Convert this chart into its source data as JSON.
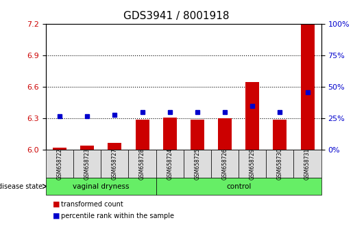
{
  "title": "GDS3941 / 8001918",
  "samples": [
    "GSM658722",
    "GSM658723",
    "GSM658727",
    "GSM658728",
    "GSM658724",
    "GSM658725",
    "GSM658726",
    "GSM658729",
    "GSM658730",
    "GSM658731"
  ],
  "red_values": [
    6.02,
    6.04,
    6.07,
    6.29,
    6.31,
    6.29,
    6.3,
    6.65,
    6.29,
    7.2
  ],
  "blue_values": [
    27,
    27,
    28,
    30,
    30,
    30,
    30,
    35,
    30,
    46
  ],
  "ylim": [
    6.0,
    7.2
  ],
  "y2lim": [
    0,
    100
  ],
  "yticks": [
    6.0,
    6.3,
    6.6,
    6.9,
    7.2
  ],
  "y2ticks": [
    0,
    25,
    50,
    75,
    100
  ],
  "grid_lines": [
    6.3,
    6.6,
    6.9
  ],
  "bar_color": "#cc0000",
  "dot_color": "#0000cc",
  "bar_width": 0.5,
  "group1_label": "vaginal dryness",
  "group2_label": "control",
  "group1_indices": [
    0,
    1,
    2,
    3
  ],
  "group2_indices": [
    4,
    5,
    6,
    7,
    8,
    9
  ],
  "disease_state_label": "disease state",
  "legend_red": "transformed count",
  "legend_blue": "percentile rank within the sample",
  "group_bg_color": "#66ee66",
  "sample_bg_color": "#dddddd",
  "axis_bg_color": "#ffffff",
  "title_fontsize": 11,
  "tick_fontsize": 8,
  "label_fontsize": 8
}
